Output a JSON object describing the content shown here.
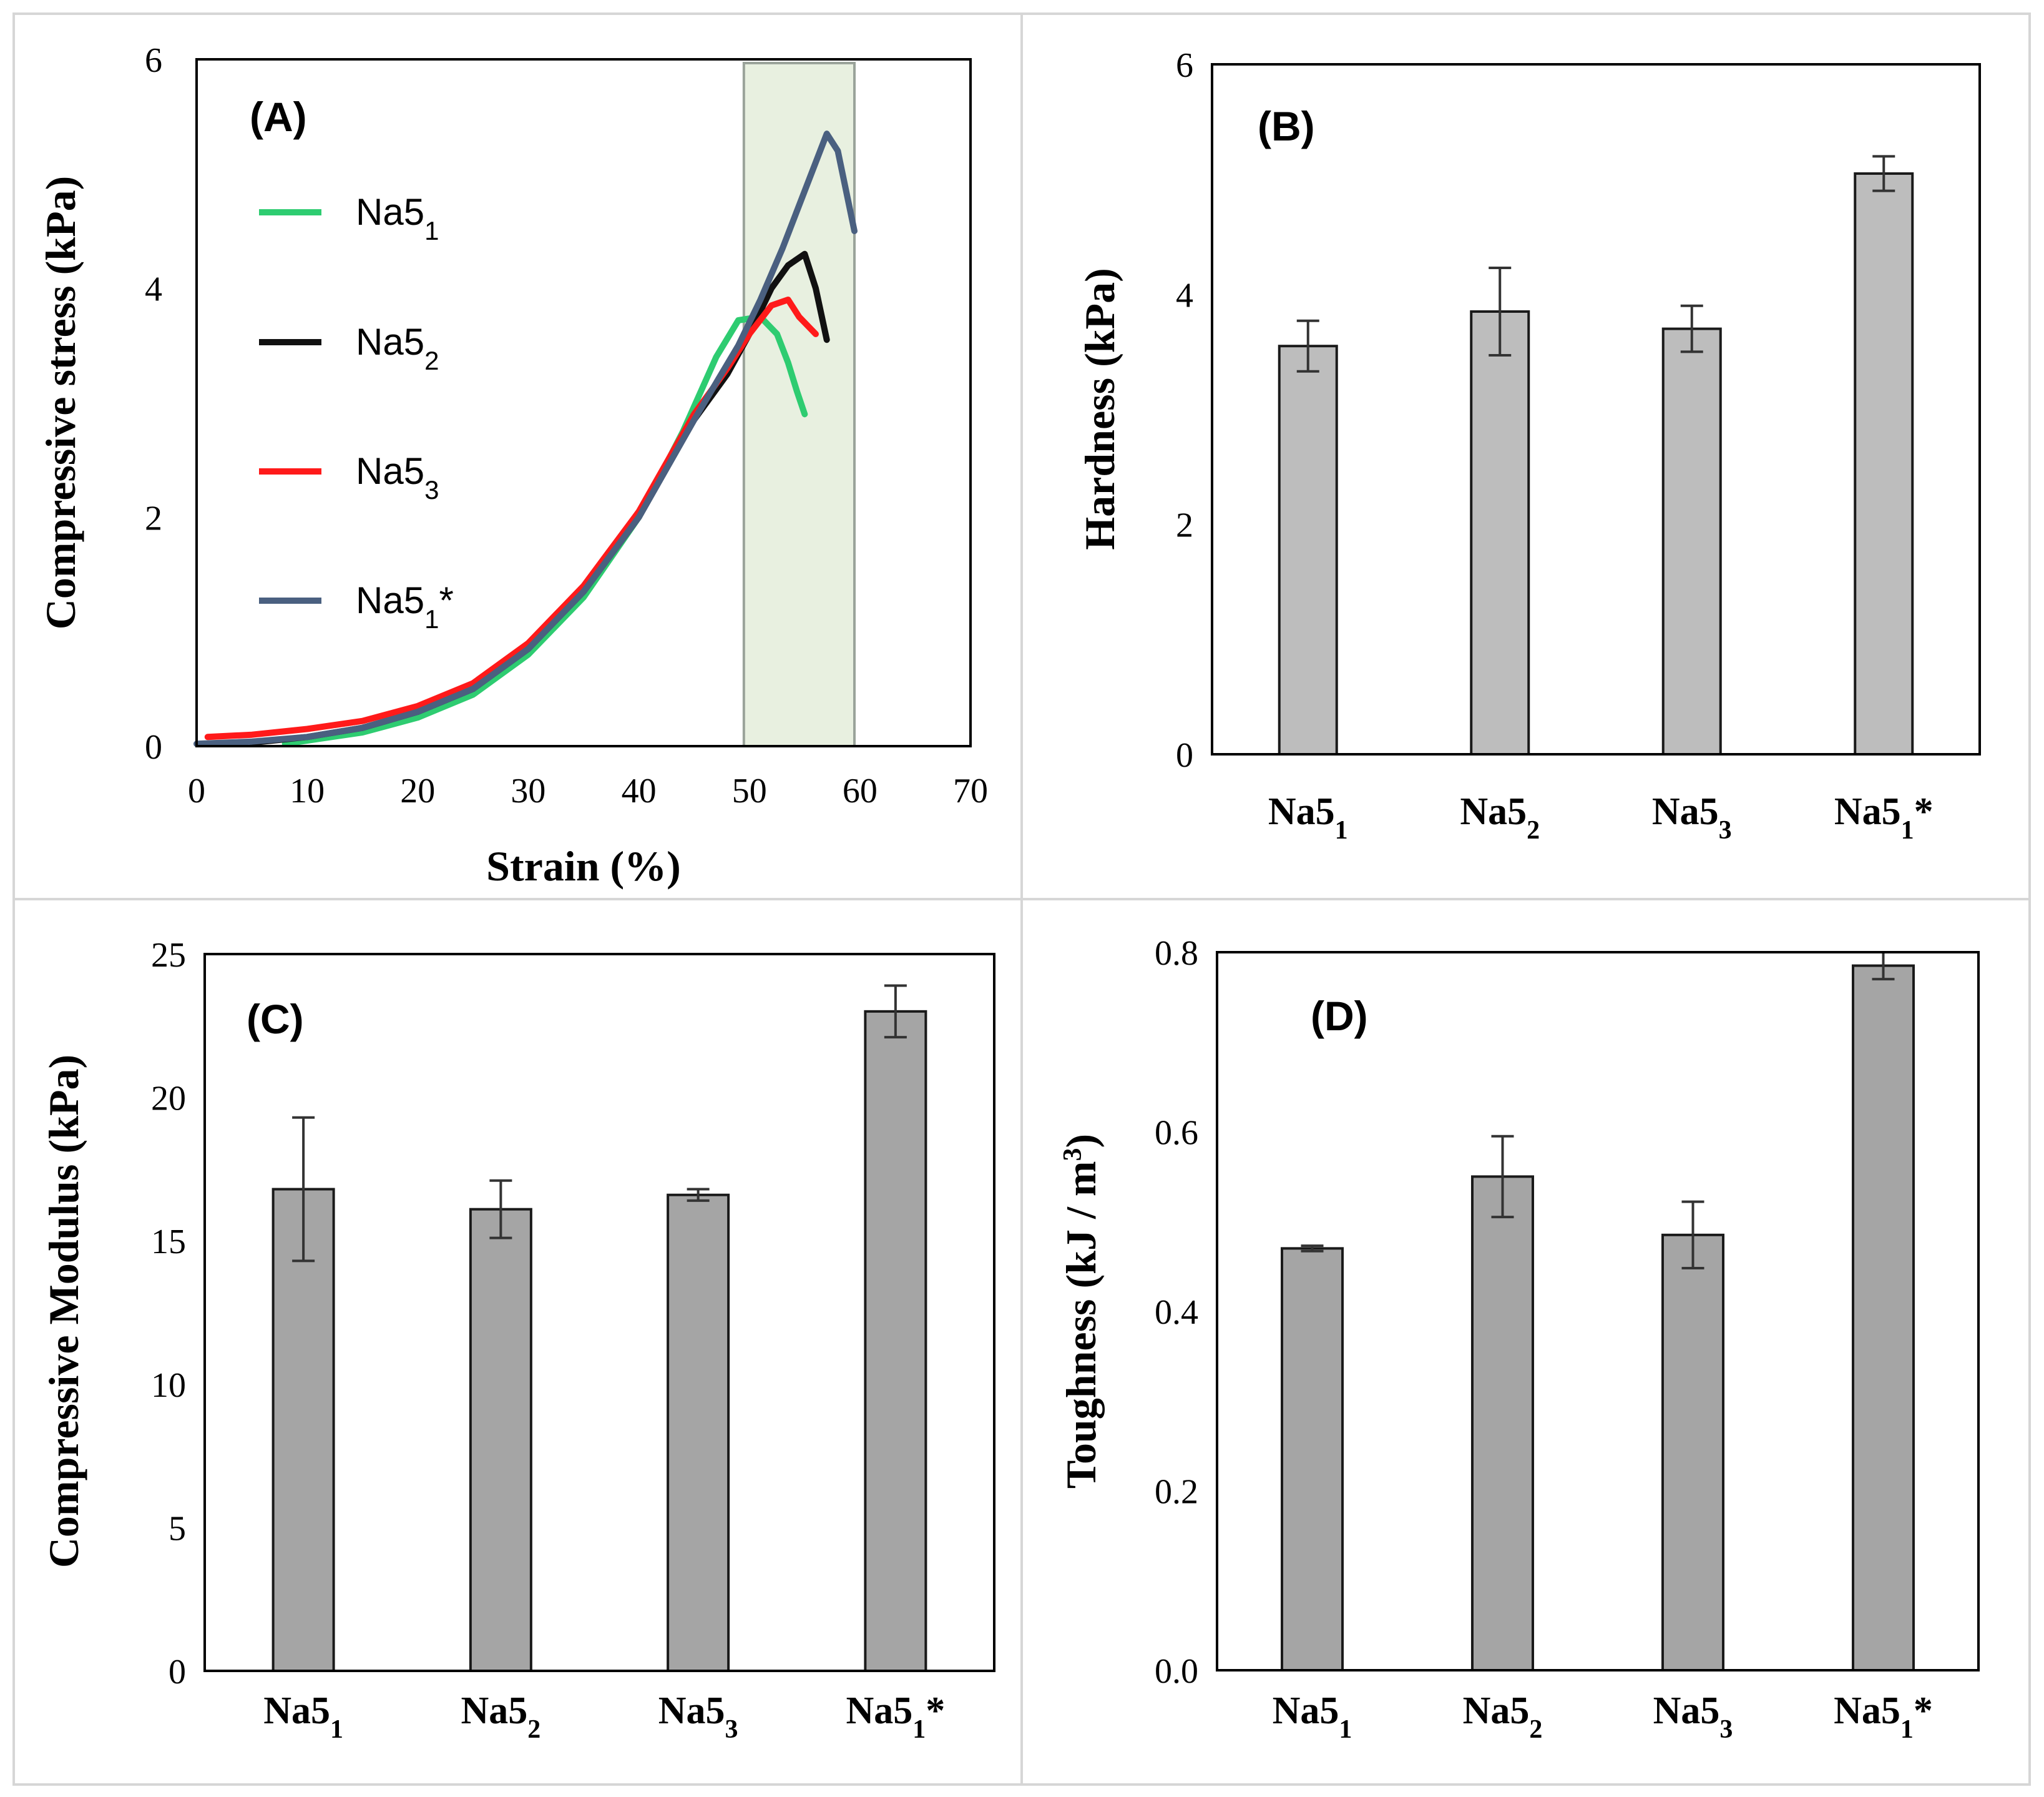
{
  "colors": {
    "Na5_1": "#2ecc71",
    "Na5_2": "#111111",
    "Na5_3": "#ff1a1a",
    "Na5_1star": "#4a6080",
    "bar_light": "#bdbdbd",
    "bar_dark": "#a5a5a5",
    "highlight": "#e8f0e0"
  },
  "chart_data": [
    {
      "type": "line",
      "panel_label": "(A)",
      "xlabel": "Strain (%)",
      "ylabel": "Compressive stress (kPa)",
      "xlim": [
        0,
        70
      ],
      "ylim": [
        0,
        6
      ],
      "xticks": [
        "0",
        "10",
        "20",
        "30",
        "40",
        "50",
        "60",
        "70"
      ],
      "yticks": [
        "0",
        "2",
        "4",
        "6"
      ],
      "highlight_region": [
        49.5,
        59.5
      ],
      "series": [
        {
          "name": "Na5",
          "subscript": "1",
          "suffix": "",
          "color_key": "Na5_1",
          "x": [
            8,
            15,
            20,
            25,
            30,
            35,
            40,
            44,
            47,
            49,
            51,
            52.5,
            53.5,
            54.3,
            55
          ],
          "y": [
            0.02,
            0.12,
            0.25,
            0.45,
            0.8,
            1.3,
            2.0,
            2.75,
            3.4,
            3.72,
            3.75,
            3.6,
            3.35,
            3.1,
            2.9
          ]
        },
        {
          "name": "Na5",
          "subscript": "2",
          "suffix": "",
          "color_key": "Na5_2",
          "x": [
            5,
            10,
            15,
            20,
            25,
            30,
            35,
            40,
            45,
            48,
            50,
            52,
            53.5,
            55,
            56,
            57
          ],
          "y": [
            0.03,
            0.08,
            0.16,
            0.3,
            0.5,
            0.85,
            1.35,
            2.0,
            2.85,
            3.25,
            3.6,
            4.0,
            4.2,
            4.3,
            4.0,
            3.55
          ]
        },
        {
          "name": "Na5",
          "subscript": "3",
          "suffix": "",
          "color_key": "Na5_3",
          "x": [
            1,
            5,
            10,
            15,
            20,
            25,
            30,
            35,
            40,
            45,
            48,
            50,
            52,
            53.5,
            54.5,
            55.5,
            56
          ],
          "y": [
            0.08,
            0.1,
            0.15,
            0.22,
            0.35,
            0.55,
            0.9,
            1.4,
            2.05,
            2.9,
            3.3,
            3.6,
            3.85,
            3.9,
            3.75,
            3.65,
            3.6
          ]
        },
        {
          "name": "Na5",
          "subscript": "1",
          "suffix": "*",
          "color_key": "Na5_1star",
          "x": [
            0,
            5,
            10,
            15,
            20,
            25,
            30,
            35,
            40,
            45,
            49,
            51,
            53,
            55,
            57,
            58,
            59.5
          ],
          "y": [
            0.02,
            0.04,
            0.08,
            0.16,
            0.3,
            0.5,
            0.85,
            1.35,
            2.0,
            2.85,
            3.5,
            3.9,
            4.35,
            4.85,
            5.35,
            5.2,
            4.5
          ]
        }
      ]
    },
    {
      "type": "bar",
      "panel_label": "(B)",
      "xlabel": "",
      "ylabel": "Hardness  (kPa)",
      "ylim": [
        0,
        6
      ],
      "yticks": [
        "0",
        "2",
        "4",
        "6"
      ],
      "categories": [
        {
          "base": "Na5",
          "sub": "1",
          "suffix": ""
        },
        {
          "base": "Na5",
          "sub": "2",
          "suffix": ""
        },
        {
          "base": "Na5",
          "sub": "3",
          "suffix": ""
        },
        {
          "base": "Na5",
          "sub": "1",
          "suffix": "*"
        }
      ],
      "values": [
        3.55,
        3.85,
        3.7,
        5.05
      ],
      "errors": [
        0.22,
        0.38,
        0.2,
        0.15
      ],
      "bar_color_key": "bar_light"
    },
    {
      "type": "bar",
      "panel_label": "(C)",
      "xlabel": "",
      "ylabel": "Compressive Modulus (kPa)",
      "ylim": [
        0,
        25
      ],
      "yticks": [
        "0",
        "5",
        "10",
        "15",
        "20",
        "25"
      ],
      "categories": [
        {
          "base": "Na5",
          "sub": "1",
          "suffix": ""
        },
        {
          "base": "Na5",
          "sub": "2",
          "suffix": ""
        },
        {
          "base": "Na5",
          "sub": "3",
          "suffix": ""
        },
        {
          "base": "Na5",
          "sub": "1",
          "suffix": "*"
        }
      ],
      "values": [
        16.8,
        16.1,
        16.6,
        23.0
      ],
      "errors": [
        2.5,
        1.0,
        0.2,
        0.9
      ],
      "bar_color_key": "bar_dark"
    },
    {
      "type": "bar",
      "panel_label": "(D)",
      "xlabel": "",
      "ylabel": "Toughness (kJ / m",
      "ylabel_sup": "3",
      "ylabel_end": ")",
      "ylim": [
        0,
        0.8
      ],
      "yticks": [
        "0.0",
        "0.2",
        "0.4",
        "0.6",
        "0.8"
      ],
      "categories": [
        {
          "base": "Na5",
          "sub": "1",
          "suffix": ""
        },
        {
          "base": "Na5",
          "sub": "2",
          "suffix": ""
        },
        {
          "base": "Na5",
          "sub": "3",
          "suffix": ""
        },
        {
          "base": "Na5",
          "sub": "1",
          "suffix": "*"
        }
      ],
      "values": [
        0.47,
        0.55,
        0.485,
        0.785
      ],
      "errors": [
        0.003,
        0.045,
        0.037,
        0.015
      ],
      "bar_color_key": "bar_dark"
    }
  ]
}
